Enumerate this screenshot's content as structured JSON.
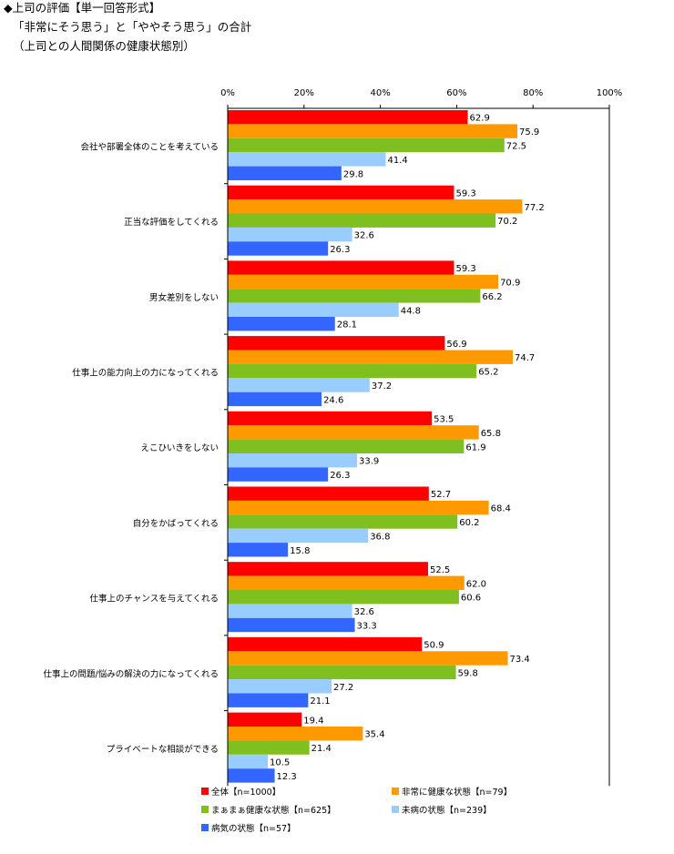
{
  "title": {
    "line1": "◆上司の評価【単一回答形式】",
    "line2": "「非常にそう思う」と「ややそう思う」の合計",
    "line3": "（上司との人間関係の健康状態別）"
  },
  "colors": {
    "series": [
      "#ff0000",
      "#ff9900",
      "#7fbf1f",
      "#99ccff",
      "#3366ff"
    ],
    "axis": "#000000",
    "separator": "#000000"
  },
  "chart_data": {
    "type": "bar",
    "orientation": "horizontal",
    "x_ticks": [
      "0%",
      "20%",
      "40%",
      "60%",
      "80%",
      "100%"
    ],
    "xlim": [
      0,
      100
    ],
    "grid": false,
    "legend_position": "bottom",
    "categories": [
      "会社や部署全体のことを考えている",
      "正当な評価をしてくれる",
      "男女差別をしない",
      "仕事上の能力向上の力になってくれる",
      "えこひいきをしない",
      "自分をかばってくれる",
      "仕事上のチャンスを与えてくれる",
      "仕事上の問題/悩みの解決の力になってくれる",
      "プライベートな相談ができる"
    ],
    "series": [
      {
        "name": "全体【n=1000】",
        "values": [
          62.9,
          59.3,
          59.3,
          56.9,
          53.5,
          52.7,
          52.5,
          50.9,
          19.4
        ],
        "labels": [
          "62.9",
          "59.3",
          "59.3",
          "56.9",
          "53.5",
          "52.7",
          "52.5",
          "50.9",
          "19.4"
        ]
      },
      {
        "name": "非常に健康な状態【n=79】",
        "values": [
          75.9,
          77.2,
          70.9,
          74.7,
          65.8,
          68.4,
          62.0,
          73.4,
          35.4
        ],
        "labels": [
          "75.9",
          "77.2",
          "70.9",
          "74.7",
          "65.8",
          "68.4",
          "62.0",
          "73.4",
          "35.4"
        ]
      },
      {
        "name": "まぁまぁ健康な状態【n=625】",
        "values": [
          72.5,
          70.2,
          66.2,
          65.2,
          61.9,
          60.2,
          60.6,
          59.8,
          21.4
        ],
        "labels": [
          "72.5",
          "70.2",
          "66.2",
          "65.2",
          "61.9",
          "60.2",
          "60.6",
          "59.8",
          "21.4"
        ]
      },
      {
        "name": "未病の状態【n=239】",
        "values": [
          41.4,
          32.6,
          44.8,
          37.2,
          33.9,
          36.8,
          32.6,
          27.2,
          10.5
        ],
        "labels": [
          "41.4",
          "32.6",
          "44.8",
          "37.2",
          "33.9",
          "36.8",
          "32.6",
          "27.2",
          "10.5"
        ]
      },
      {
        "name": "病気の状態【n=57】",
        "values": [
          29.8,
          26.3,
          28.1,
          24.6,
          26.3,
          15.8,
          33.3,
          21.1,
          12.3
        ],
        "labels": [
          "29.8",
          "26.3",
          "28.1",
          "24.6",
          "26.3",
          "15.8",
          "33.3",
          "21.1",
          "12.3"
        ]
      }
    ]
  }
}
